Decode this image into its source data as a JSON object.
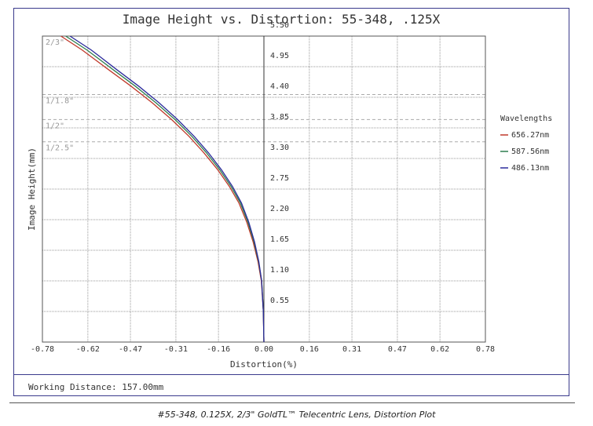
{
  "chart_data": {
    "type": "line",
    "title": "Image Height vs. Distortion: 55-348, .125X",
    "xlabel": "Distortion(%)",
    "ylabel": "Image Height(mm)",
    "xlim": [
      -0.78,
      0.78
    ],
    "ylim": [
      0,
      5.5
    ],
    "x_ticks": [
      "-0.78",
      "-0.62",
      "-0.47",
      "-0.31",
      "-0.16",
      "0.00",
      "0.16",
      "0.31",
      "0.47",
      "0.62",
      "0.78"
    ],
    "y_ticks": [
      "0.55",
      "1.10",
      "1.65",
      "2.20",
      "2.75",
      "3.30",
      "3.85",
      "4.40",
      "4.95",
      "5.50"
    ],
    "grid": true,
    "legend": {
      "title": "Wavelengths",
      "placement": "right"
    },
    "sensor_formats": [
      {
        "label": "2/3\"",
        "y": 5.5
      },
      {
        "label": "1/1.8\"",
        "y": 4.45
      },
      {
        "label": "1/2\"",
        "y": 4.0
      },
      {
        "label": "1/2.5\"",
        "y": 3.6
      }
    ],
    "series": [
      {
        "name": "656.27nm",
        "color": "#c0392b",
        "x": [
          0,
          -0.002,
          -0.009,
          -0.021,
          -0.038,
          -0.06,
          -0.088,
          -0.122,
          -0.163,
          -0.211,
          -0.264,
          -0.325,
          -0.393,
          -0.468,
          -0.548,
          -0.64,
          -0.715
        ],
        "y": [
          0,
          0.55,
          1.1,
          1.45,
          1.8,
          2.15,
          2.5,
          2.8,
          3.1,
          3.4,
          3.7,
          4.0,
          4.3,
          4.6,
          4.9,
          5.25,
          5.5
        ]
      },
      {
        "name": "587.56nm",
        "color": "#2e7d4f",
        "x": [
          0,
          -0.002,
          -0.008,
          -0.019,
          -0.035,
          -0.056,
          -0.083,
          -0.116,
          -0.156,
          -0.202,
          -0.254,
          -0.313,
          -0.38,
          -0.453,
          -0.532,
          -0.623,
          -0.698
        ],
        "y": [
          0,
          0.55,
          1.1,
          1.45,
          1.8,
          2.15,
          2.5,
          2.8,
          3.1,
          3.4,
          3.7,
          4.0,
          4.3,
          4.6,
          4.9,
          5.25,
          5.5
        ]
      },
      {
        "name": "486.13nm",
        "color": "#2b2b9c",
        "x": [
          0,
          -0.002,
          -0.008,
          -0.018,
          -0.033,
          -0.053,
          -0.079,
          -0.111,
          -0.15,
          -0.195,
          -0.246,
          -0.304,
          -0.369,
          -0.441,
          -0.519,
          -0.608,
          -0.683
        ],
        "y": [
          0,
          0.55,
          1.1,
          1.45,
          1.8,
          2.15,
          2.5,
          2.8,
          3.1,
          3.4,
          3.7,
          4.0,
          4.3,
          4.6,
          4.9,
          5.25,
          5.5
        ]
      }
    ]
  },
  "footer": {
    "working_distance": "Working Distance: 157.00mm"
  },
  "caption": "#55-348, 0.125X, 2/3\" GoldTL™ Telecentric Lens, Distortion Plot"
}
